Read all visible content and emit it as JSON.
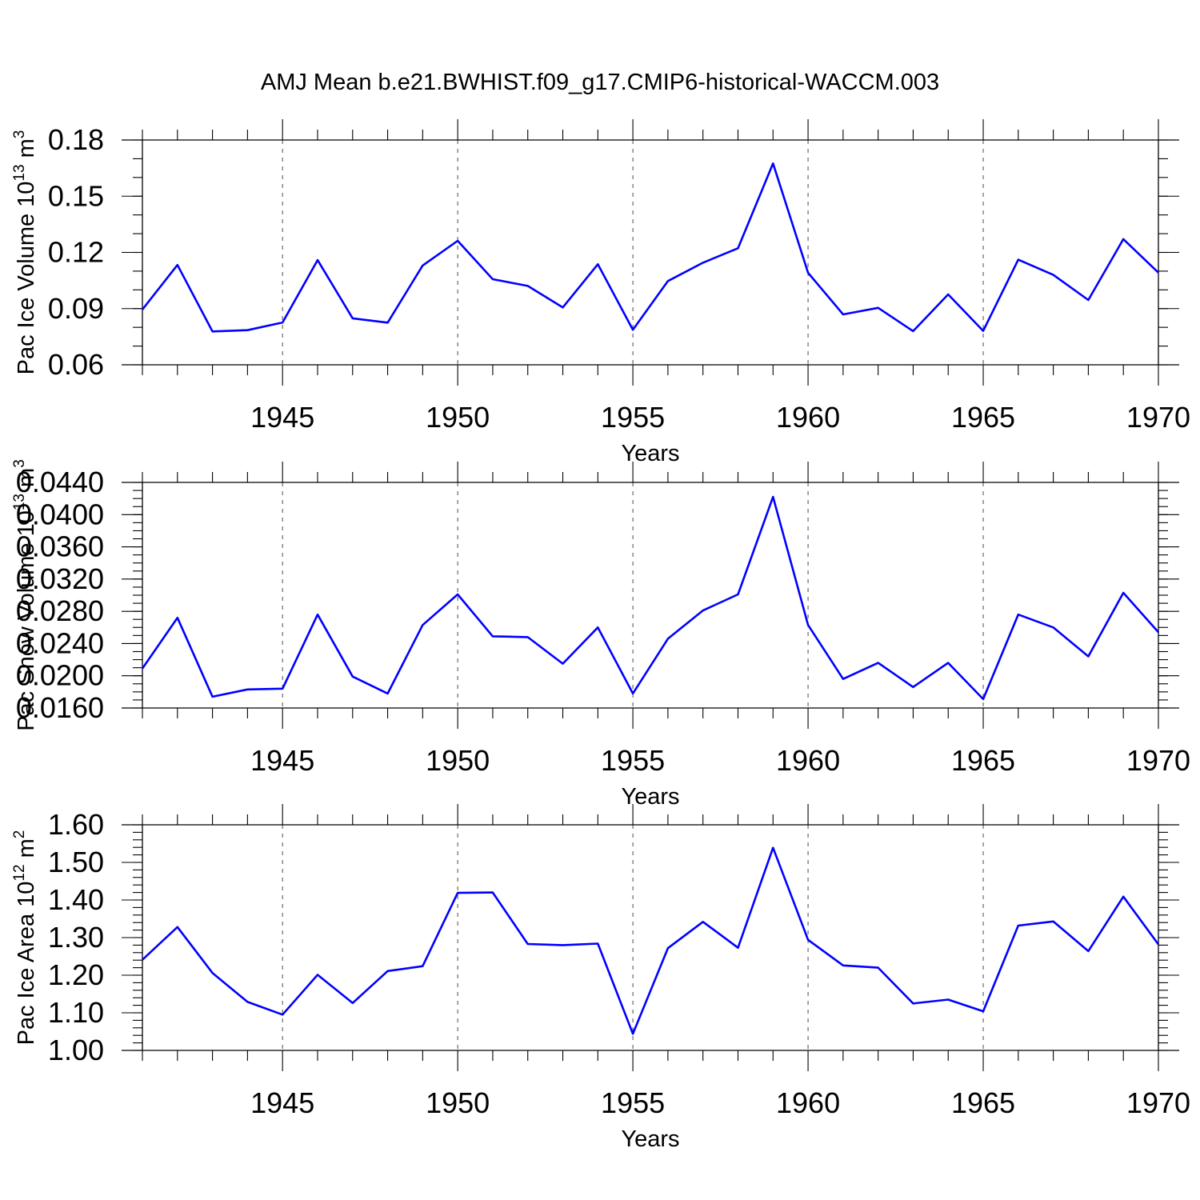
{
  "colors": {
    "line": "#0000ff",
    "axes": "#000000",
    "background": "#ffffff"
  },
  "figure_title": "AMJ Mean b.e21.BWHIST.f09_g17.CMIP6-historical-WACCM.003",
  "chart_data": [
    {
      "type": "line",
      "title": "AMJ Mean b.e21.BWHIST.f09_g17.CMIP6-historical-WACCM.003",
      "xlabel": "Years",
      "ylabel": "Pac Ice Volume 10",
      "ylabel_exp": "13",
      "ylabel_unit": "m",
      "ylabel_unit_exp": "3",
      "xlim": [
        1941,
        1970
      ],
      "ylim": [
        0.06,
        0.18
      ],
      "xticks": [
        1945,
        1950,
        1955,
        1960,
        1965,
        1970
      ],
      "xtick_labels": [
        "1945",
        "1950",
        "1955",
        "1960",
        "1965",
        "1970"
      ],
      "yticks": [
        0.06,
        0.09,
        0.12,
        0.15,
        0.18
      ],
      "ytick_labels": [
        "0.06",
        "0.09",
        "0.12",
        "0.15",
        "0.18"
      ],
      "y_minor_step": 0.01,
      "grid": "vertical dashed at major x ticks",
      "x": [
        1941,
        1942,
        1943,
        1944,
        1945,
        1946,
        1947,
        1948,
        1949,
        1950,
        1951,
        1952,
        1953,
        1954,
        1955,
        1956,
        1957,
        1958,
        1959,
        1960,
        1961,
        1962,
        1963,
        1964,
        1965,
        1966,
        1967,
        1968,
        1969,
        1970
      ],
      "values": [
        0.0895,
        0.1133,
        0.0778,
        0.0785,
        0.0826,
        0.1159,
        0.0848,
        0.0825,
        0.113,
        0.1262,
        0.1057,
        0.1021,
        0.0906,
        0.1137,
        0.0787,
        0.1047,
        0.1145,
        0.1222,
        0.1675,
        0.1091,
        0.0869,
        0.0904,
        0.078,
        0.0976,
        0.0781,
        0.1161,
        0.108,
        0.0946,
        0.1271,
        0.1092
      ]
    },
    {
      "type": "line",
      "title": "",
      "xlabel": "Years",
      "ylabel": "Pac Snow Volume 10",
      "ylabel_exp": "13",
      "ylabel_unit": "m",
      "ylabel_unit_exp": "3",
      "xlim": [
        1941,
        1970
      ],
      "ylim": [
        0.016,
        0.044
      ],
      "xticks": [
        1945,
        1950,
        1955,
        1960,
        1965,
        1970
      ],
      "xtick_labels": [
        "1945",
        "1950",
        "1955",
        "1960",
        "1965",
        "1970"
      ],
      "yticks": [
        0.016,
        0.02,
        0.024,
        0.028,
        0.032,
        0.036,
        0.04,
        0.044
      ],
      "ytick_labels": [
        "0.0160",
        "0.0200",
        "0.0240",
        "0.0280",
        "0.0320",
        "0.0360",
        "0.0400",
        "0.0440"
      ],
      "y_minor_step": 0.001,
      "grid": "vertical dashed at major x ticks",
      "x": [
        1941,
        1942,
        1943,
        1944,
        1945,
        1946,
        1947,
        1948,
        1949,
        1950,
        1951,
        1952,
        1953,
        1954,
        1955,
        1956,
        1957,
        1958,
        1959,
        1960,
        1961,
        1962,
        1963,
        1964,
        1965,
        1966,
        1967,
        1968,
        1969,
        1970
      ],
      "values": [
        0.0209,
        0.0272,
        0.0174,
        0.0183,
        0.0184,
        0.0276,
        0.0199,
        0.0178,
        0.0263,
        0.0301,
        0.0249,
        0.0248,
        0.0215,
        0.026,
        0.0178,
        0.0246,
        0.0281,
        0.0301,
        0.0422,
        0.0263,
        0.0196,
        0.0216,
        0.0186,
        0.0216,
        0.0171,
        0.0276,
        0.026,
        0.0224,
        0.0303,
        0.0254
      ]
    },
    {
      "type": "line",
      "title": "",
      "xlabel": "Years",
      "ylabel": "Pac Ice Area 10",
      "ylabel_exp": "12",
      "ylabel_unit": "m",
      "ylabel_unit_exp": "2",
      "xlim": [
        1941,
        1970
      ],
      "ylim": [
        1.0,
        1.6
      ],
      "xticks": [
        1945,
        1950,
        1955,
        1960,
        1965,
        1970
      ],
      "xtick_labels": [
        "1945",
        "1950",
        "1955",
        "1960",
        "1965",
        "1970"
      ],
      "yticks": [
        1.0,
        1.1,
        1.2,
        1.3,
        1.4,
        1.5,
        1.6
      ],
      "ytick_labels": [
        "1.00",
        "1.10",
        "1.20",
        "1.30",
        "1.40",
        "1.50",
        "1.60"
      ],
      "y_minor_step": 0.02,
      "grid": "vertical dashed at major x ticks",
      "x": [
        1941,
        1942,
        1943,
        1944,
        1945,
        1946,
        1947,
        1948,
        1949,
        1950,
        1951,
        1952,
        1953,
        1954,
        1955,
        1956,
        1957,
        1958,
        1959,
        1960,
        1961,
        1962,
        1963,
        1964,
        1965,
        1966,
        1967,
        1968,
        1969,
        1970
      ],
      "values": [
        1.241,
        1.328,
        1.206,
        1.129,
        1.095,
        1.201,
        1.126,
        1.211,
        1.224,
        1.419,
        1.42,
        1.283,
        1.28,
        1.284,
        1.044,
        1.272,
        1.342,
        1.273,
        1.539,
        1.294,
        1.226,
        1.22,
        1.125,
        1.135,
        1.104,
        1.332,
        1.343,
        1.264,
        1.409,
        1.282
      ]
    }
  ]
}
